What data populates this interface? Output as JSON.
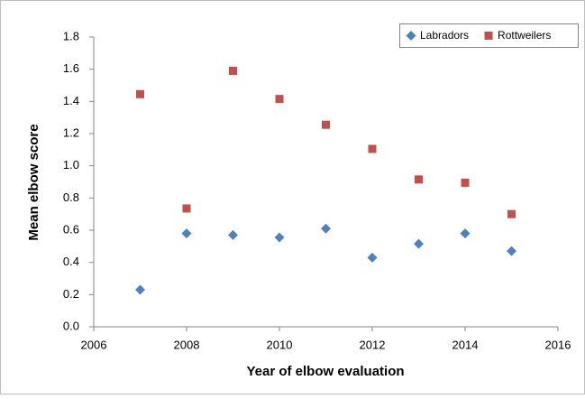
{
  "chart_data": {
    "type": "scatter",
    "x_label": "Year of elbow evaluation",
    "y_label": "Mean elbow score",
    "series": [
      {
        "name": "Labradors",
        "color": "#4f81bd",
        "marker": "diamond",
        "x": [
          2007,
          2008,
          2009,
          2010,
          2011,
          2012,
          2013,
          2014,
          2015
        ],
        "values": [
          0.23,
          0.58,
          0.57,
          0.555,
          0.61,
          0.43,
          0.515,
          0.58,
          0.47
        ]
      },
      {
        "name": "Rottweilers",
        "color": "#c0504d",
        "marker": "square",
        "x": [
          2007,
          2008,
          2009,
          2010,
          2011,
          2012,
          2013,
          2014,
          2015
        ],
        "values": [
          1.445,
          0.735,
          1.59,
          1.415,
          1.255,
          1.105,
          0.915,
          0.895,
          0.7
        ]
      }
    ],
    "xlim": [
      2006,
      2016
    ],
    "xticks": [
      2006,
      2008,
      2010,
      2012,
      2014,
      2016
    ],
    "ylim": [
      0,
      1.8
    ],
    "yticks": [
      {
        "value": 0,
        "label": "0.0"
      },
      0.2,
      0.4,
      0.6,
      0.8,
      {
        "value": 1,
        "label": "1.0"
      },
      1.2,
      1.4,
      1.6,
      1.8
    ],
    "legend": "upper right"
  }
}
